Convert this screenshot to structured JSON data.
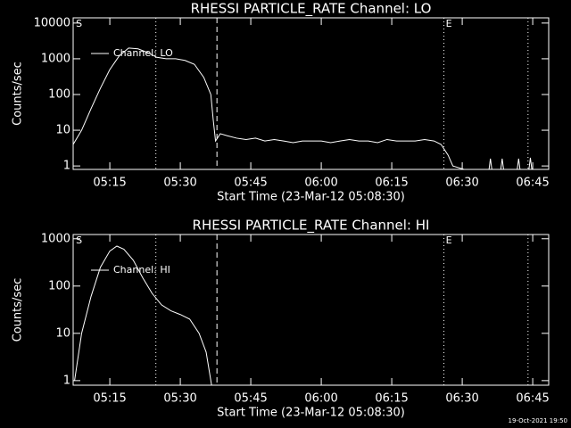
{
  "chart_data": [
    {
      "type": "line",
      "title": "RHESSI PARTICLE_RATE Channel: LO",
      "x_label": "Start Time (23-Mar-12 05:08:30)",
      "y_label": "Counts/sec",
      "log_y": true,
      "xlim": [
        307.2,
        408.4
      ],
      "ylim": [
        0.8,
        14000
      ],
      "yticks": [
        1,
        10,
        100,
        1000,
        10000
      ],
      "xticks": [
        {
          "value": 315,
          "label": "05:15"
        },
        {
          "value": 330,
          "label": "05:30"
        },
        {
          "value": 345,
          "label": "05:45"
        },
        {
          "value": 360,
          "label": "06:00"
        },
        {
          "value": 375,
          "label": "06:15"
        },
        {
          "value": 390,
          "label": "06:30"
        },
        {
          "value": 405,
          "label": "06:45"
        }
      ],
      "vlines": [
        {
          "x": 324.8,
          "style": "dotted"
        },
        {
          "x": 337.8,
          "style": "dashed"
        },
        {
          "x": 386.1,
          "style": "dotted"
        },
        {
          "x": 404,
          "style": "dotted"
        }
      ],
      "flags": [
        {
          "label": "S",
          "x": 307.8
        },
        {
          "label": "E",
          "x": 386.5
        }
      ],
      "x": [
        307.2,
        309,
        311,
        313,
        315,
        317,
        319,
        321,
        323,
        325,
        327,
        329,
        331,
        333,
        335,
        336.5,
        337,
        337.5,
        338.5,
        340,
        342,
        344,
        346,
        348,
        350,
        352,
        354,
        356,
        358,
        360,
        362,
        364,
        366,
        368,
        370,
        372,
        374,
        376,
        378,
        380,
        382,
        384,
        385.5,
        387,
        388,
        395.5,
        396,
        396.5,
        398,
        398.5,
        399,
        401.5,
        402,
        402.5,
        404,
        404.5,
        405
      ],
      "series": [
        {
          "name": "Channel: LO",
          "color": "#ffffff",
          "values": [
            4,
            10,
            40,
            150,
            500,
            1200,
            2000,
            1900,
            1500,
            1100,
            1000,
            1000,
            900,
            700,
            300,
            100,
            20,
            5,
            8,
            7,
            6,
            5.5,
            6,
            5,
            5.5,
            5,
            4.5,
            5,
            5,
            5,
            4.5,
            5,
            5.5,
            5,
            5,
            4.5,
            5.5,
            5,
            5,
            5,
            5.5,
            5,
            4,
            2,
            1,
            0.5,
            1.6,
            0.5,
            0.5,
            1.6,
            0.5,
            0.5,
            1.6,
            0.5,
            0.5,
            1.7,
            0.5
          ]
        }
      ]
    },
    {
      "type": "line",
      "title": "RHESSI PARTICLE_RATE Channel: HI",
      "x_label": "Start Time (23-Mar-12 05:08:30)",
      "y_label": "Counts/sec",
      "log_y": true,
      "xlim": [
        307.2,
        408.4
      ],
      "ylim": [
        0.8,
        1230
      ],
      "yticks": [
        1,
        10,
        100,
        1000
      ],
      "xticks": [
        {
          "value": 315,
          "label": "05:15"
        },
        {
          "value": 330,
          "label": "05:30"
        },
        {
          "value": 345,
          "label": "05:45"
        },
        {
          "value": 360,
          "label": "06:00"
        },
        {
          "value": 375,
          "label": "06:15"
        },
        {
          "value": 390,
          "label": "06:30"
        },
        {
          "value": 405,
          "label": "06:45"
        }
      ],
      "vlines": [
        {
          "x": 324.8,
          "style": "dotted"
        },
        {
          "x": 337.8,
          "style": "dashed"
        },
        {
          "x": 386.1,
          "style": "dotted"
        },
        {
          "x": 404,
          "style": "dotted"
        }
      ],
      "flags": [
        {
          "label": "S",
          "x": 307.8
        },
        {
          "label": "E",
          "x": 386.5
        }
      ],
      "x": [
        307.5,
        309,
        311,
        313,
        315,
        316.5,
        318,
        320,
        322,
        324,
        326,
        328,
        330,
        332,
        334,
        335.5,
        336.5,
        337
      ],
      "series": [
        {
          "name": "Channel: HI",
          "color": "#ffffff",
          "values": [
            1,
            10,
            60,
            250,
            550,
            700,
            600,
            350,
            150,
            70,
            40,
            30,
            25,
            20,
            10,
            4,
            1,
            0.5
          ]
        }
      ]
    }
  ],
  "footer": "19-Oct-2021 19:50"
}
